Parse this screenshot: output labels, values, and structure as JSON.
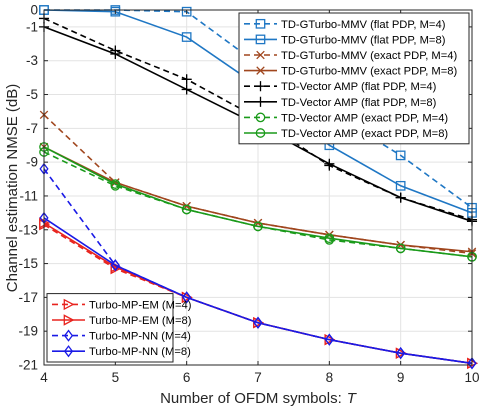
{
  "chart_data": {
    "type": "line",
    "xlabel": "Number of OFDM symbols:",
    "xlabel_var": "T",
    "ylabel": "Channel estimation NMSE (dB)",
    "xlim": [
      4,
      10
    ],
    "ylim": [
      -21,
      0
    ],
    "x_ticks": [
      "4",
      "5",
      "6",
      "7",
      "8",
      "9",
      "10"
    ],
    "y_ticks": [
      "0",
      "-1",
      "-3",
      "-5",
      "-7",
      "-9",
      "-11",
      "-13",
      "-15",
      "-17",
      "-19",
      "-21"
    ],
    "grid": true,
    "x": [
      4,
      5,
      6,
      7,
      8,
      9,
      10
    ],
    "series": [
      {
        "name": "TD-GTurbo-MMV (flat PDP, M=4)",
        "color": "#1f77c4",
        "dash": "6,4",
        "marker": "square",
        "values": [
          0,
          0,
          -0.1,
          -3.2,
          -6.0,
          -8.6,
          -11.7
        ]
      },
      {
        "name": "TD-GTurbo-MMV (flat PDP, M=8)",
        "color": "#1f77c4",
        "dash": "",
        "marker": "square",
        "values": [
          0,
          -0.1,
          -1.6,
          -4.5,
          -8.0,
          -10.4,
          -12.0
        ]
      },
      {
        "name": "TD-GTurbo-MMV (exact PDP, M=4)",
        "color": "#a0461e",
        "dash": "6,4",
        "marker": "x",
        "values": [
          -6.2,
          -10.2,
          -11.6,
          -12.6,
          -13.3,
          -13.9,
          -14.4
        ]
      },
      {
        "name": "TD-GTurbo-MMV (exact PDP, M=8)",
        "color": "#a0461e",
        "dash": "",
        "marker": "x",
        "values": [
          -8.1,
          -10.2,
          -11.6,
          -12.6,
          -13.3,
          -13.9,
          -14.3
        ]
      },
      {
        "name": "TD-Vector AMP (flat PDP, M=4)",
        "color": "#000000",
        "dash": "6,4",
        "marker": "plus",
        "values": [
          -0.5,
          -2.4,
          -4.1,
          -6.4,
          -9.2,
          -11.1,
          -12.4
        ]
      },
      {
        "name": "TD-Vector AMP (flat PDP, M=8)",
        "color": "#000000",
        "dash": "",
        "marker": "plus",
        "values": [
          -1.0,
          -2.6,
          -4.7,
          -6.8,
          -9.1,
          -11.1,
          -12.5
        ]
      },
      {
        "name": "TD-Vector AMP (exact PDP, M=4)",
        "color": "#1a9a1a",
        "dash": "6,4",
        "marker": "circle",
        "values": [
          -8.4,
          -10.4,
          -11.8,
          -12.8,
          -13.6,
          -14.1,
          -14.6
        ]
      },
      {
        "name": "TD-Vector AMP (exact PDP, M=8)",
        "color": "#1a9a1a",
        "dash": "",
        "marker": "circle",
        "values": [
          -8.1,
          -10.3,
          -11.8,
          -12.8,
          -13.5,
          -14.1,
          -14.6
        ]
      },
      {
        "name": "Turbo-MP-EM (M=4)",
        "color": "#e8231e",
        "dash": "6,4",
        "marker": "triangle-right",
        "values": [
          -12.7,
          -15.3,
          -17.0,
          -18.5,
          -19.5,
          -20.3,
          -20.9
        ]
      },
      {
        "name": "Turbo-MP-EM (M=8)",
        "color": "#e8231e",
        "dash": "",
        "marker": "triangle-right",
        "values": [
          -12.6,
          -15.2,
          -17.0,
          -18.5,
          -19.5,
          -20.3,
          -20.9
        ]
      },
      {
        "name": "Turbo-MP-NN (M=4)",
        "color": "#1a1ae6",
        "dash": "6,4",
        "marker": "diamond",
        "values": [
          -9.4,
          -15.1,
          -17.0,
          -18.5,
          -19.5,
          -20.3,
          -20.9
        ]
      },
      {
        "name": "Turbo-MP-NN (M=8)",
        "color": "#1a1ae6",
        "dash": "",
        "marker": "diamond",
        "values": [
          -12.3,
          -15.1,
          -17.0,
          -18.5,
          -19.5,
          -20.3,
          -20.9
        ]
      }
    ],
    "legends": [
      {
        "placement": "top-right",
        "series": [
          0,
          1,
          2,
          3,
          4,
          5,
          6,
          7
        ]
      },
      {
        "placement": "bottom-left",
        "series": [
          8,
          9,
          10,
          11
        ]
      }
    ]
  }
}
